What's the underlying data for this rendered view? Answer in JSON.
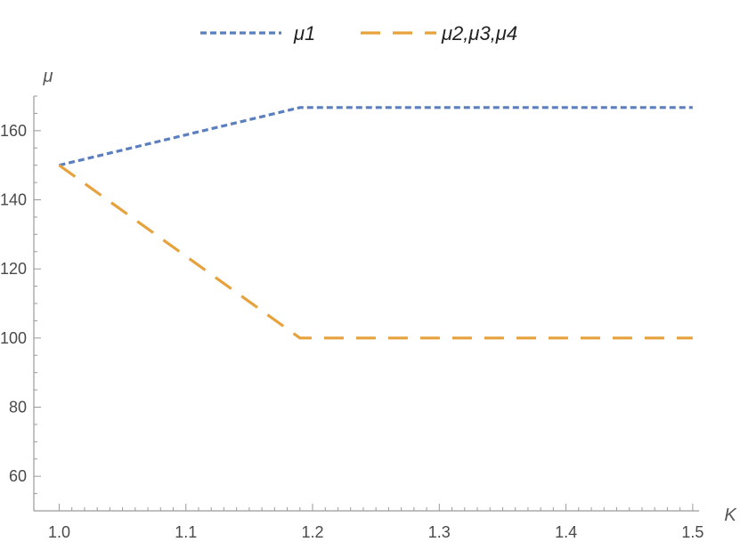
{
  "chart_data": {
    "type": "line",
    "title": "",
    "xlabel": "K",
    "ylabel": "μ",
    "xlim": [
      0.98,
      1.505
    ],
    "ylim": [
      50,
      170
    ],
    "x_ticks": [
      "1.0",
      "1.1",
      "1.2",
      "1.3",
      "1.4",
      "1.5"
    ],
    "y_ticks": [
      "60",
      "80",
      "100",
      "120",
      "140",
      "160"
    ],
    "grid": false,
    "legend_position": "top-center",
    "series": [
      {
        "name": "μ1",
        "color": "#5b7fbe",
        "dash": "short-dash",
        "x": [
          1.0,
          1.19,
          1.5
        ],
        "y": [
          150,
          166.7,
          166.7
        ]
      },
      {
        "name": "μ2,μ3,μ4",
        "color": "#e6a23c",
        "dash": "long-dash",
        "x": [
          1.0,
          1.19,
          1.5
        ],
        "y": [
          150,
          100,
          100
        ]
      }
    ]
  }
}
